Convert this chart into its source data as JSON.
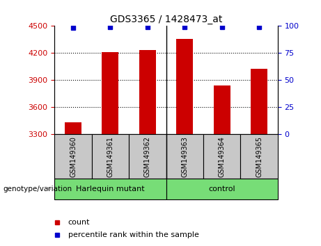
{
  "title": "GDS3365 / 1428473_at",
  "samples": [
    "GSM149360",
    "GSM149361",
    "GSM149362",
    "GSM149363",
    "GSM149364",
    "GSM149365"
  ],
  "counts": [
    3430,
    4205,
    4230,
    4355,
    3840,
    4020
  ],
  "percentile_ranks": [
    98,
    99,
    99,
    99,
    99,
    99
  ],
  "ylim_left": [
    3300,
    4500
  ],
  "ylim_right": [
    0,
    100
  ],
  "yticks_left": [
    3300,
    3600,
    3900,
    4200,
    4500
  ],
  "yticks_right": [
    0,
    25,
    50,
    75,
    100
  ],
  "bar_color": "#CC0000",
  "dot_color": "#0000CC",
  "left_tick_color": "#CC0000",
  "right_tick_color": "#0000CC",
  "group1_label": "Harlequin mutant",
  "group2_label": "control",
  "group_color": "#77DD77",
  "sample_box_color": "#C8C8C8",
  "genotype_label": "genotype/variation",
  "legend_count_label": "count",
  "legend_percentile_label": "percentile rank within the sample",
  "bar_width": 0.45
}
